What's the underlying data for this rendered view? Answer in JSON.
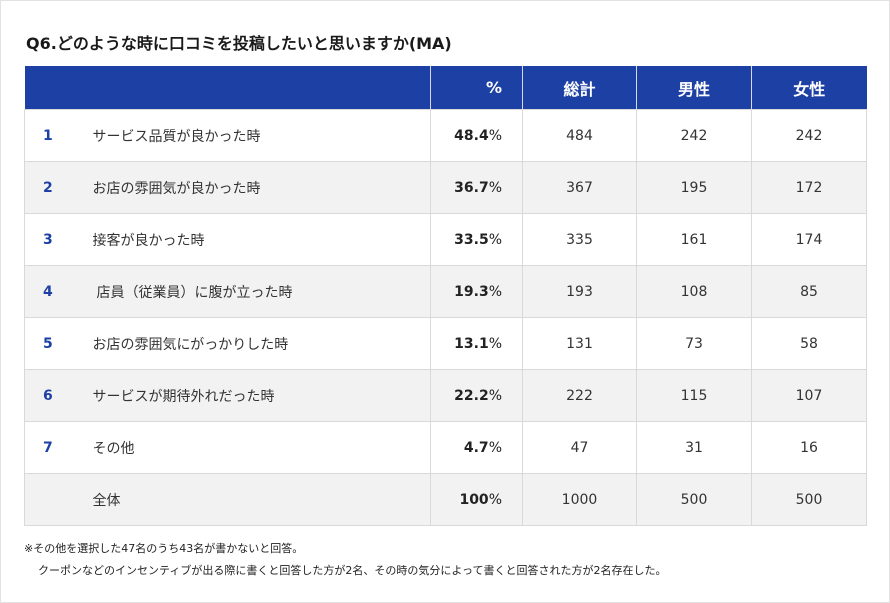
{
  "title": "Q6.どのような時に口コミを投稿したいと思いますか(MA)",
  "headers": {
    "rank": "",
    "label": "",
    "percent": "%",
    "total": "総計",
    "male": "男性",
    "female": "女性"
  },
  "rows": [
    {
      "num": "1",
      "label": "サービス品質が良かった時",
      "pct": "48.4",
      "total": "484",
      "male": "242",
      "female": "242"
    },
    {
      "num": "2",
      "label": "お店の雰囲気が良かった時",
      "pct": "36.7",
      "total": "367",
      "male": "195",
      "female": "172"
    },
    {
      "num": "3",
      "label": "接客が良かった時",
      "pct": "33.5",
      "total": "335",
      "male": "161",
      "female": "174"
    },
    {
      "num": "4",
      "label": "店員（従業員）に腹が立った時",
      "pct": "19.3",
      "total": "193",
      "male": "108",
      "female": "85"
    },
    {
      "num": "5",
      "label": "お店の雰囲気にがっかりした時",
      "pct": "13.1",
      "total": "131",
      "male": "73",
      "female": "58"
    },
    {
      "num": "6",
      "label": "サービスが期待外れだった時",
      "pct": "22.2",
      "total": "222",
      "male": "115",
      "female": "107"
    },
    {
      "num": "7",
      "label": "その他",
      "pct": "4.7",
      "total": "47",
      "male": "31",
      "female": "16"
    },
    {
      "num": "",
      "label": "全体",
      "pct": "100",
      "total": "1000",
      "male": "500",
      "female": "500"
    }
  ],
  "notes": [
    "※その他を選択した47名のうち43名が書かないと回答。",
    "クーポンなどのインセンティブが出る際に書くと回答した方が2名、その時の気分によって書くと回答された方が2名存在した。"
  ],
  "percent_sign": "%",
  "colors": {
    "header_bg": "#1d40a4",
    "rank_text": "#1d40a4",
    "alt_row_bg": "#f2f2f2",
    "border": "#d9d9d9"
  },
  "chart_data": {
    "type": "table",
    "title": "Q6.どのような時に口コミを投稿したいと思いますか(MA)",
    "columns": [
      "%",
      "総計",
      "男性",
      "女性"
    ],
    "categories": [
      "サービス品質が良かった時",
      "お店の雰囲気が良かった時",
      "接客が良かった時",
      "店員（従業員）に腹が立った時",
      "お店の雰囲気にがっかりした時",
      "サービスが期待外れだった時",
      "その他",
      "全体"
    ],
    "series": [
      {
        "name": "%",
        "values": [
          48.4,
          36.7,
          33.5,
          19.3,
          13.1,
          22.2,
          4.7,
          100
        ]
      },
      {
        "name": "総計",
        "values": [
          484,
          367,
          335,
          193,
          131,
          222,
          47,
          1000
        ]
      },
      {
        "name": "男性",
        "values": [
          242,
          195,
          161,
          108,
          73,
          115,
          31,
          500
        ]
      },
      {
        "name": "女性",
        "values": [
          242,
          172,
          174,
          85,
          58,
          107,
          16,
          500
        ]
      }
    ]
  }
}
